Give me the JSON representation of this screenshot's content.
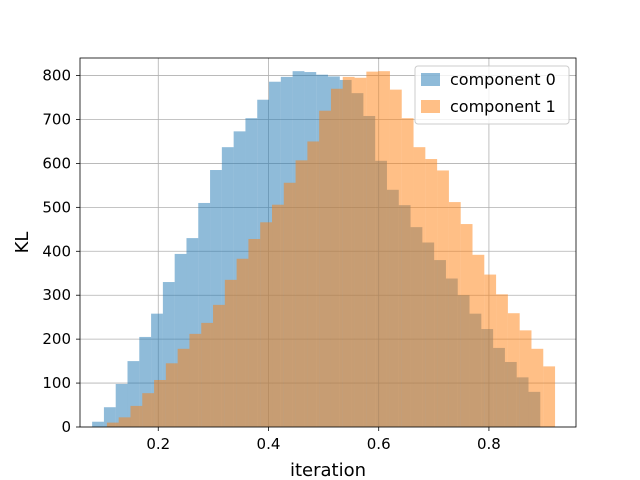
{
  "chart_data": {
    "type": "bar",
    "xlabel": "iteration",
    "ylabel": "KL",
    "xlim": [
      0.058,
      0.958
    ],
    "ylim": [
      0,
      840
    ],
    "xticks": [
      0.2,
      0.4,
      0.6,
      0.8
    ],
    "yticks": [
      0,
      100,
      200,
      300,
      400,
      500,
      600,
      700,
      800
    ],
    "grid": true,
    "legend": "top-right",
    "series": [
      {
        "name": "component 0",
        "color": "#1f77b4",
        "opacity": 0.5,
        "bin_edges": [
          0.08,
          0.1014,
          0.1228,
          0.1442,
          0.1656,
          0.187,
          0.2084,
          0.2298,
          0.2512,
          0.2726,
          0.294,
          0.3154,
          0.3368,
          0.3582,
          0.3796,
          0.401,
          0.4224,
          0.4438,
          0.4652,
          0.4866,
          0.508,
          0.5294,
          0.5508,
          0.5722,
          0.5936,
          0.615,
          0.6364,
          0.6578,
          0.6792,
          0.7006,
          0.722,
          0.7434,
          0.7648,
          0.7862,
          0.8076,
          0.829,
          0.8504,
          0.8718,
          0.8932
        ],
        "counts": [
          12,
          45,
          98,
          150,
          205,
          258,
          330,
          394,
          430,
          510,
          585,
          637,
          673,
          703,
          745,
          786,
          797,
          810,
          808,
          802,
          798,
          790,
          760,
          708,
          606,
          540,
          505,
          455,
          420,
          380,
          338,
          300,
          258,
          223,
          180,
          148,
          113,
          80
        ]
      },
      {
        "name": "component 1",
        "color": "#ff7f0e",
        "opacity": 0.5,
        "bin_edges": [
          0.1068,
          0.1282,
          0.1496,
          0.171,
          0.1924,
          0.2138,
          0.2352,
          0.2566,
          0.278,
          0.2994,
          0.3208,
          0.3422,
          0.3636,
          0.385,
          0.4064,
          0.4278,
          0.4492,
          0.4706,
          0.492,
          0.5134,
          0.5348,
          0.5562,
          0.5776,
          0.599,
          0.6204,
          0.6418,
          0.6632,
          0.6846,
          0.706,
          0.7274,
          0.7488,
          0.7702,
          0.7916,
          0.813,
          0.8344,
          0.8558,
          0.8772,
          0.8986,
          0.92
        ],
        "counts": [
          10,
          22,
          48,
          77,
          107,
          145,
          178,
          212,
          237,
          278,
          335,
          383,
          428,
          466,
          506,
          556,
          607,
          650,
          720,
          770,
          797,
          795,
          809,
          810,
          768,
          703,
          637,
          610,
          584,
          512,
          462,
          392,
          347,
          302,
          259,
          220,
          178,
          138
        ]
      }
    ]
  }
}
